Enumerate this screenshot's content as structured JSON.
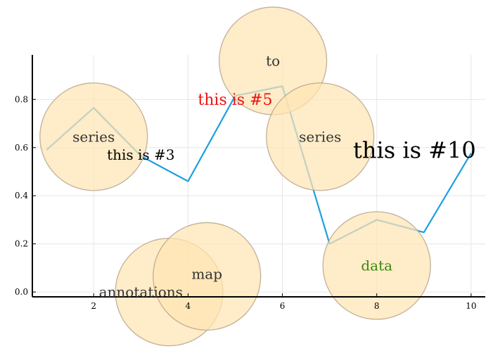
{
  "chart_data": {
    "type": "line",
    "title": "",
    "xlabel": "",
    "ylabel": "",
    "xlim": [
      0.7,
      10.3
    ],
    "ylim": [
      -0.02,
      0.985
    ],
    "grid": true,
    "legend": "none",
    "xticks": [
      {
        "value": 2,
        "label": "2"
      },
      {
        "value": 4,
        "label": "4"
      },
      {
        "value": 6,
        "label": "6"
      },
      {
        "value": 8,
        "label": "8"
      },
      {
        "value": 10,
        "label": "10"
      }
    ],
    "yticks": [
      {
        "value": 0.0,
        "label": "0.0"
      },
      {
        "value": 0.2,
        "label": "0.2"
      },
      {
        "value": 0.4,
        "label": "0.4"
      },
      {
        "value": 0.6,
        "label": "0.6"
      },
      {
        "value": 0.8,
        "label": "0.8"
      }
    ],
    "series": [
      {
        "color": "#1f9ee0",
        "x": [
          1,
          2,
          3,
          4,
          5,
          6,
          7,
          8,
          9,
          10
        ],
        "y": [
          0.59,
          0.765,
          0.565,
          0.46,
          0.815,
          0.855,
          0.2,
          0.3,
          0.248,
          0.577
        ]
      }
    ],
    "markers": [
      {
        "x": 2,
        "y": 0.645,
        "r": 1.14
      },
      {
        "x": 3.6,
        "y": 0.0,
        "r": 1.14
      },
      {
        "x": 4.4,
        "y": 0.065,
        "r": 1.14
      },
      {
        "x": 5.8,
        "y": 0.96,
        "r": 1.14
      },
      {
        "x": 6.8,
        "y": 0.645,
        "r": 1.14
      },
      {
        "x": 8,
        "y": 0.11,
        "r": 1.14
      }
    ],
    "marker_color": "#ffe5b4",
    "annotations": [
      {
        "text": "series",
        "x": 2.0,
        "y": 0.645,
        "size": 20,
        "color": "#333333"
      },
      {
        "text": "this is #3",
        "x": 3.0,
        "y": 0.57,
        "size": 20,
        "color": "#000000"
      },
      {
        "text": "annotations",
        "x": 3.0,
        "y": 0.0,
        "size": 20,
        "color": "#333333"
      },
      {
        "text": "map",
        "x": 4.4,
        "y": 0.075,
        "size": 20,
        "color": "#333333"
      },
      {
        "text": "this is #5",
        "x": 5.0,
        "y": 0.8,
        "size": 22,
        "color": "#ee1111"
      },
      {
        "text": "to",
        "x": 5.8,
        "y": 0.96,
        "size": 20,
        "color": "#333333"
      },
      {
        "text": "series",
        "x": 6.8,
        "y": 0.645,
        "size": 20,
        "color": "#333333"
      },
      {
        "text": "this is #10",
        "x": 8.8,
        "y": 0.59,
        "size": 32,
        "color": "#000000"
      },
      {
        "text": "data",
        "x": 8.0,
        "y": 0.11,
        "size": 20,
        "color": "#3a8a0a"
      }
    ]
  }
}
